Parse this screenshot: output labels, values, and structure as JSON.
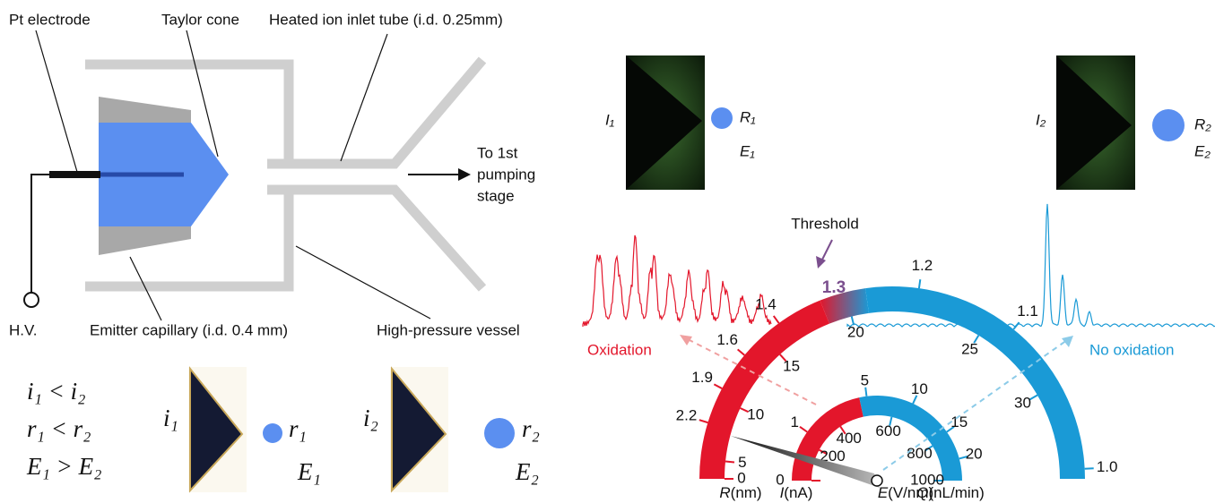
{
  "schematic": {
    "pt_electrode": "Pt electrode",
    "taylor_cone": "Taylor cone",
    "inlet_tube": "Heated ion inlet tube (i.d. 0.25mm)",
    "to_stage": [
      "To 1st",
      "pumping",
      "stage"
    ],
    "hv": "H.V.",
    "emitter": "Emitter capillary (i.d. 0.4 mm)",
    "vessel": "High-pressure vessel"
  },
  "comparison": {
    "relations": [
      "i₁ < i₂",
      "r₁ < r₂",
      "E₁ > E₂"
    ],
    "left": {
      "i": "i₁",
      "r": "r₁",
      "E": "E₁"
    },
    "right": {
      "i": "i₂",
      "r": "r₂",
      "E": "E₂"
    }
  },
  "images": {
    "left": {
      "I": "I₁",
      "R": "R₁",
      "E": "E₁"
    },
    "right": {
      "I": "I₂",
      "R": "R₂",
      "E": "E₂"
    }
  },
  "gauge": {
    "threshold": "Threshold",
    "threshold_value": "1.3",
    "oxidation": "Oxidation",
    "no_oxidation": "No oxidation",
    "scales": [
      {
        "symbol": "R",
        "unit": "(nm)",
        "ticks": [
          "0",
          "5",
          "10",
          "15",
          "20",
          "25",
          "30"
        ]
      },
      {
        "symbol": "E",
        "unit": "(V/nm)",
        "ticks": [
          "2.2",
          "1.9",
          "1.6",
          "1.4",
          "1.2",
          "1.1",
          "1.0"
        ]
      },
      {
        "symbol": "I",
        "unit": "(nA)",
        "ticks": [
          "0",
          "200",
          "400",
          "600",
          "800",
          "1000"
        ]
      },
      {
        "symbol": "Q",
        "unit": "(nL/min)",
        "ticks": [
          "1",
          "5",
          "10",
          "15",
          "20"
        ]
      }
    ]
  }
}
